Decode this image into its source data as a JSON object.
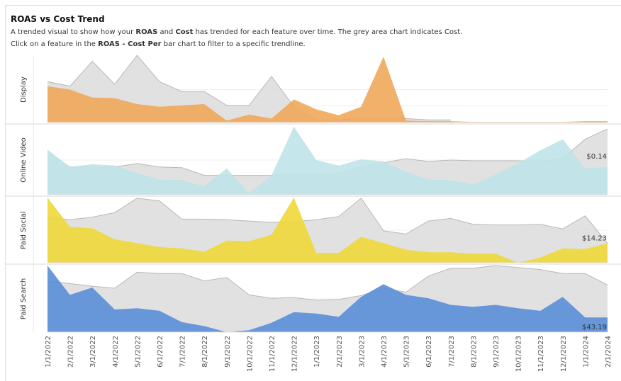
{
  "title": "ROAS vs Cost Trend",
  "description": {
    "line1_prefix": "A trended visual to show how your ",
    "line1_roas": "ROAS",
    "line1_and": " and ",
    "line1_cost": "Cost",
    "line1_suffix": " has trended for each feature over time. The grey area chart indicates Cost.",
    "line2_prefix": "Click on a feature in the ",
    "line2_link": "ROAS - Cost Per",
    "line2_suffix": " bar chart to filter to a specific trendline."
  },
  "chart_data": {
    "type": "area",
    "x": [
      "1/1/2022",
      "2/1/2022",
      "3/1/2022",
      "4/1/2022",
      "5/1/2022",
      "6/1/2022",
      "7/1/2022",
      "8/1/2022",
      "9/1/2022",
      "10/1/2022",
      "11/1/2022",
      "12/1/2022",
      "1/1/2023",
      "2/1/2023",
      "3/1/2023",
      "4/1/2023",
      "5/1/2023",
      "6/1/2023",
      "7/1/2023",
      "8/1/2023",
      "9/1/2023",
      "10/1/2023",
      "11/1/2023",
      "12/1/2023",
      "1/1/2024",
      "2/1/2024"
    ],
    "grid": true,
    "colors": {
      "cost_fill": "#dcdcdc",
      "cost_line": "#b8b8b8",
      "Display": "#f0a95a",
      "Online Video": "#bfe3e8",
      "Paid Social": "#f0d83a",
      "Paid Search": "#5a8fd8"
    },
    "series": [
      {
        "name": "Display",
        "cost": [
          0.62,
          0.55,
          0.93,
          0.58,
          1.02,
          0.62,
          0.47,
          0.47,
          0.26,
          0.26,
          0.7,
          0.24,
          0.04,
          0.04,
          0.07,
          0.07,
          0.06,
          0.04,
          0.04,
          null,
          null,
          null,
          null,
          null,
          0.01,
          0.01
        ],
        "value": [
          0.55,
          0.5,
          0.38,
          0.37,
          0.28,
          0.24,
          0.26,
          0.28,
          0.03,
          0.12,
          0.06,
          0.35,
          0.2,
          0.11,
          0.24,
          1.0,
          0.03,
          0.02,
          0.02,
          0.01,
          0.01,
          0.01,
          0.01,
          0.01,
          0.02,
          0.02
        ],
        "end_label": ""
      },
      {
        "name": "Online Video",
        "cost": [
          0.6,
          0.4,
          0.4,
          0.4,
          0.45,
          0.4,
          0.39,
          0.28,
          0.28,
          0.28,
          0.28,
          0.3,
          0.3,
          0.3,
          0.4,
          0.46,
          0.52,
          0.48,
          0.5,
          0.49,
          0.49,
          0.49,
          0.48,
          0.52,
          0.8,
          0.95
        ],
        "value": [
          0.65,
          0.4,
          0.44,
          0.42,
          0.31,
          0.22,
          0.21,
          0.12,
          0.38,
          0.02,
          0.28,
          0.98,
          0.5,
          0.42,
          0.51,
          0.48,
          0.33,
          0.22,
          0.21,
          0.15,
          0.29,
          0.45,
          0.64,
          0.8,
          0.38,
          0.4
        ],
        "end_label": "$0.14"
      },
      {
        "name": "Paid Social",
        "cost": [
          0.7,
          0.66,
          0.7,
          0.77,
          0.99,
          0.95,
          0.67,
          0.67,
          0.66,
          0.64,
          0.62,
          0.63,
          0.66,
          0.71,
          0.99,
          0.49,
          0.44,
          0.64,
          0.68,
          0.59,
          0.58,
          0.58,
          0.59,
          0.52,
          0.72,
          0.3
        ],
        "value": [
          1.0,
          0.55,
          0.53,
          0.36,
          0.3,
          0.24,
          0.22,
          0.17,
          0.34,
          0.33,
          0.43,
          1.0,
          0.15,
          0.15,
          0.4,
          0.3,
          0.2,
          0.16,
          0.16,
          0.14,
          0.14,
          0.0,
          0.08,
          0.22,
          0.21,
          0.3
        ],
        "end_label": "$14.23"
      },
      {
        "name": "Paid Search",
        "cost": [
          0.77,
          0.73,
          0.69,
          0.66,
          0.9,
          0.88,
          0.88,
          0.77,
          0.82,
          0.56,
          0.51,
          0.52,
          0.48,
          0.49,
          0.55,
          0.66,
          0.6,
          0.84,
          0.96,
          0.96,
          1.0,
          0.97,
          0.94,
          0.88,
          0.88,
          0.71
        ],
        "value": [
          1.0,
          0.56,
          0.67,
          0.34,
          0.36,
          0.32,
          0.15,
          0.09,
          0.0,
          0.03,
          0.14,
          0.3,
          0.28,
          0.23,
          0.53,
          0.72,
          0.56,
          0.51,
          0.41,
          0.38,
          0.41,
          0.36,
          0.32,
          0.53,
          0.22,
          0.22
        ],
        "end_label": "$43.19"
      }
    ]
  }
}
